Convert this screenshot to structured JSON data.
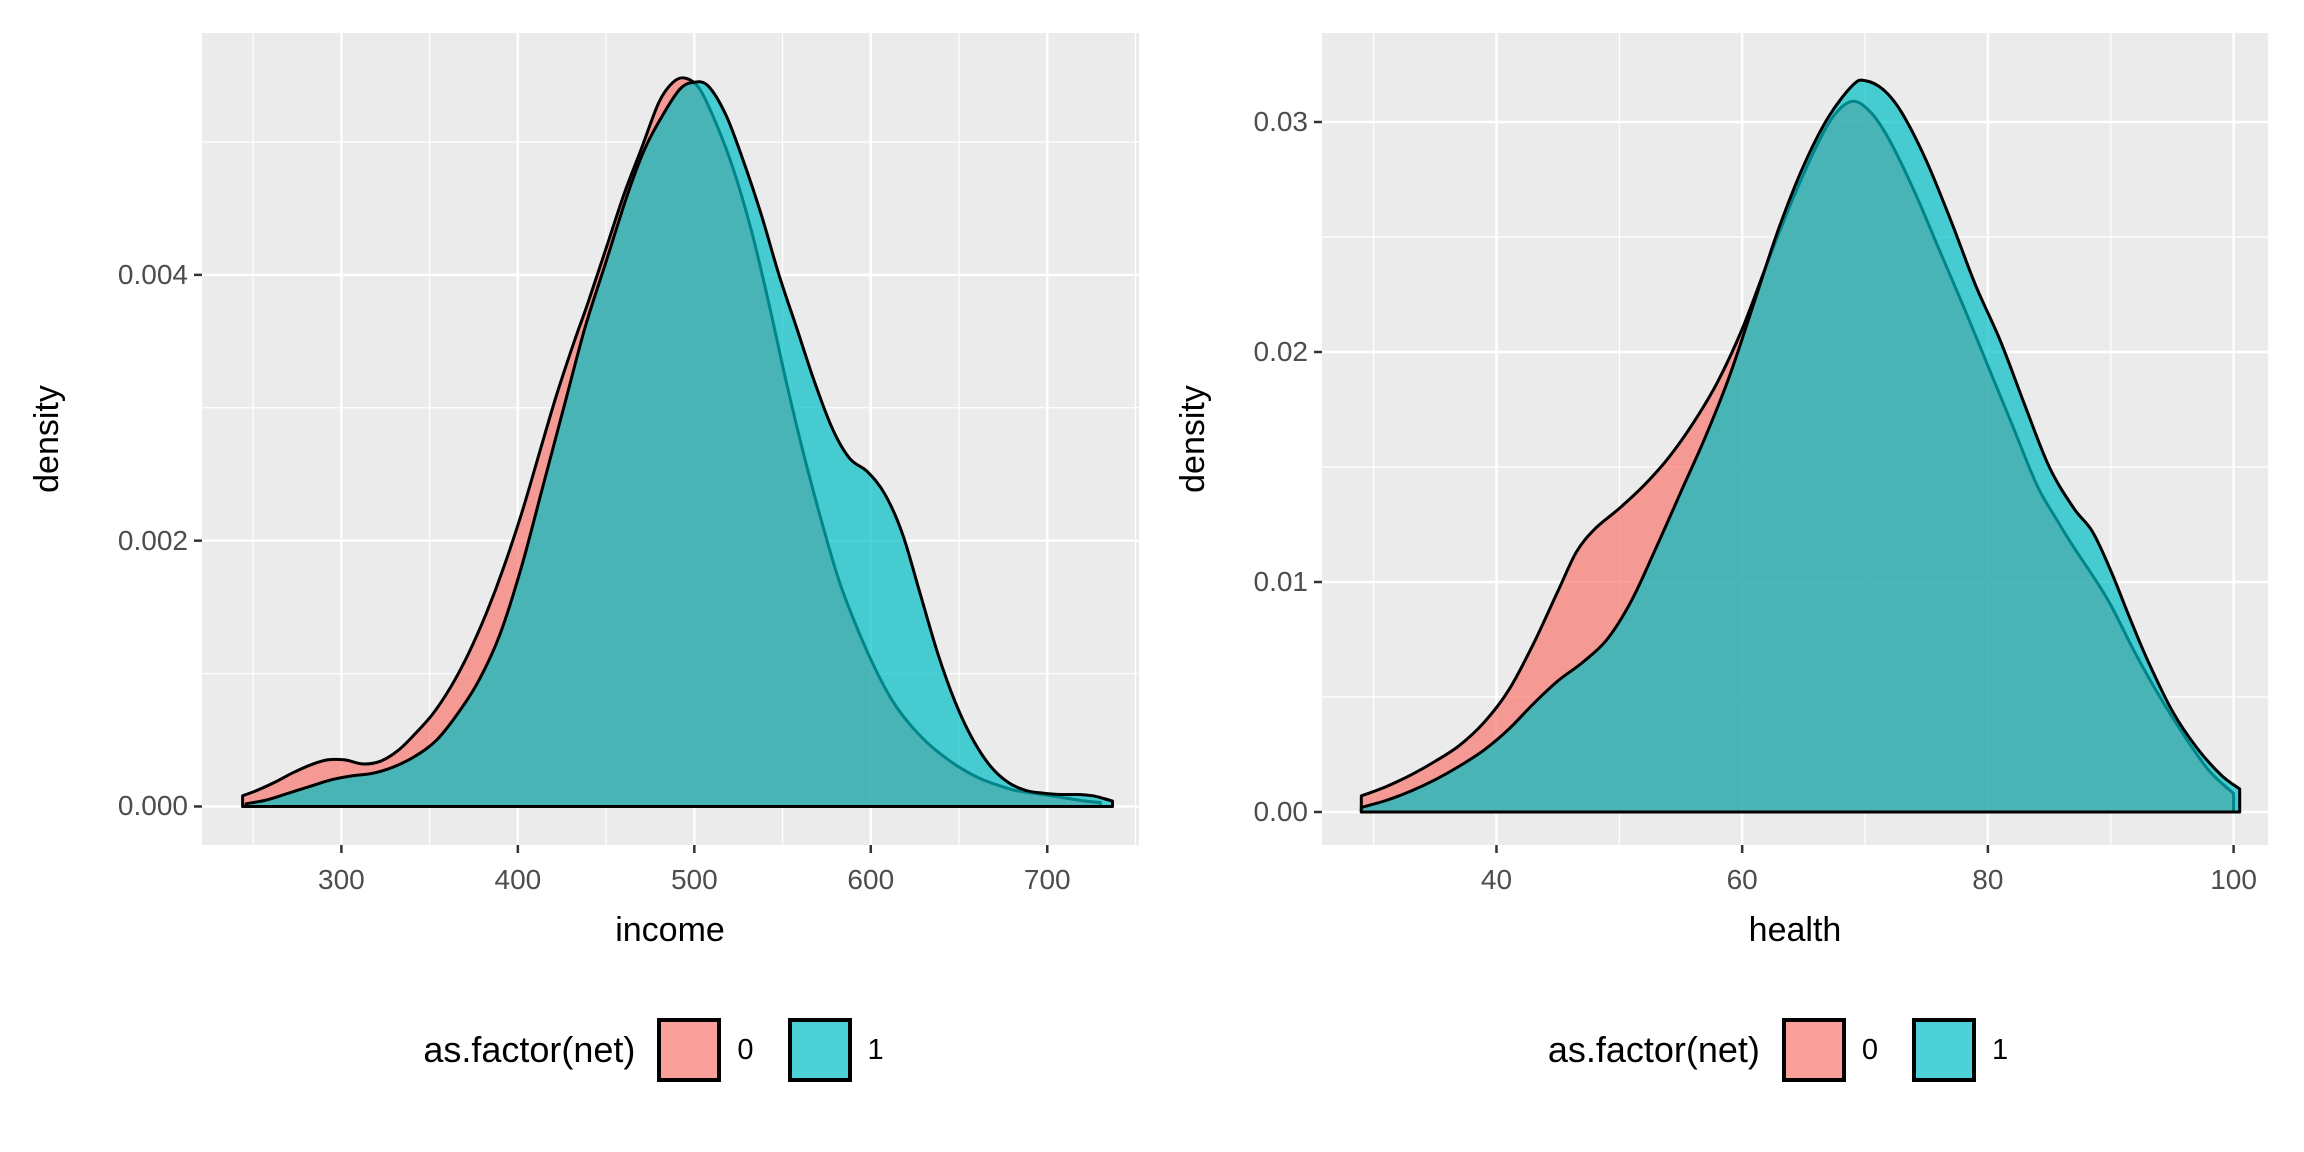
{
  "figure": {
    "background": "#FFFFFF",
    "panel_background": "#EBEBEB",
    "grid_color": "#FFFFFF",
    "axis_text_color": "#4D4D4D",
    "axis_title_color": "#000000",
    "outline_color": "#000000"
  },
  "chart_data": [
    {
      "type": "area",
      "subtype": "density",
      "title": "",
      "xlabel": "income",
      "ylabel": "density",
      "xlim": [
        221,
        752
      ],
      "ylim": [
        -0.00029,
        0.00582
      ],
      "grid": "on",
      "x_ticks": {
        "values": [
          300,
          400,
          500,
          600,
          700
        ],
        "labels": [
          "300",
          "400",
          "500",
          "600",
          "700"
        ]
      },
      "x_minor": [
        250,
        350,
        450,
        550,
        650,
        750
      ],
      "y_ticks": {
        "values": [
          0.0,
          0.002,
          0.004
        ],
        "labels": [
          "0.000",
          "0.002",
          "0.004"
        ]
      },
      "y_minor": [
        0.001,
        0.003,
        0.005
      ],
      "legend": {
        "title": "as.factor(net)",
        "position": "bottom",
        "fill_alpha": 0.7,
        "entries": [
          {
            "label": "0",
            "color": "#F8766D"
          },
          {
            "label": "1",
            "color": "#00BFC4"
          }
        ]
      },
      "series": [
        {
          "name": "0",
          "color": "#F8766D",
          "points": [
            [
              244,
              8e-05
            ],
            [
              252,
              0.00012
            ],
            [
              262,
              0.00018
            ],
            [
              272,
              0.00025
            ],
            [
              282,
              0.00031
            ],
            [
              292,
              0.00035
            ],
            [
              302,
              0.00035
            ],
            [
              312,
              0.00032
            ],
            [
              322,
              0.00034
            ],
            [
              332,
              0.00042
            ],
            [
              342,
              0.00055
            ],
            [
              352,
              0.0007
            ],
            [
              362,
              0.0009
            ],
            [
              372,
              0.00115
            ],
            [
              382,
              0.00145
            ],
            [
              392,
              0.0018
            ],
            [
              402,
              0.0022
            ],
            [
              412,
              0.00265
            ],
            [
              422,
              0.0031
            ],
            [
              432,
              0.0035
            ],
            [
              440,
              0.0038
            ],
            [
              450,
              0.0042
            ],
            [
              460,
              0.0046
            ],
            [
              470,
              0.00495
            ],
            [
              480,
              0.0053
            ],
            [
              488,
              0.00545
            ],
            [
              495,
              0.00548
            ],
            [
              503,
              0.0054
            ],
            [
              512,
              0.00515
            ],
            [
              522,
              0.0048
            ],
            [
              532,
              0.00435
            ],
            [
              542,
              0.0038
            ],
            [
              552,
              0.0032
            ],
            [
              562,
              0.00265
            ],
            [
              572,
              0.00215
            ],
            [
              582,
              0.0017
            ],
            [
              592,
              0.00135
            ],
            [
              602,
              0.00105
            ],
            [
              612,
              0.0008
            ],
            [
              622,
              0.00062
            ],
            [
              632,
              0.00048
            ],
            [
              642,
              0.00037
            ],
            [
              652,
              0.00028
            ],
            [
              662,
              0.00021
            ],
            [
              672,
              0.00016
            ],
            [
              682,
              0.00012
            ],
            [
              692,
              0.0001
            ],
            [
              702,
              8e-05
            ],
            [
              712,
              6e-05
            ],
            [
              722,
              4e-05
            ],
            [
              730,
              3e-05
            ]
          ]
        },
        {
          "name": "1",
          "color": "#00BFC4",
          "points": [
            [
              246,
              2e-05
            ],
            [
              258,
              5e-05
            ],
            [
              270,
              0.0001
            ],
            [
              282,
              0.00015
            ],
            [
              294,
              0.0002
            ],
            [
              306,
              0.00023
            ],
            [
              318,
              0.00025
            ],
            [
              330,
              0.0003
            ],
            [
              342,
              0.00038
            ],
            [
              354,
              0.0005
            ],
            [
              366,
              0.0007
            ],
            [
              378,
              0.00095
            ],
            [
              390,
              0.0013
            ],
            [
              402,
              0.0018
            ],
            [
              414,
              0.0024
            ],
            [
              426,
              0.003
            ],
            [
              438,
              0.0036
            ],
            [
              450,
              0.0041
            ],
            [
              462,
              0.0046
            ],
            [
              472,
              0.00495
            ],
            [
              482,
              0.0052
            ],
            [
              492,
              0.0054
            ],
            [
              500,
              0.00545
            ],
            [
              508,
              0.00542
            ],
            [
              518,
              0.0052
            ],
            [
              528,
              0.00485
            ],
            [
              538,
              0.00445
            ],
            [
              548,
              0.004
            ],
            [
              558,
              0.0036
            ],
            [
              568,
              0.0032
            ],
            [
              578,
              0.00285
            ],
            [
              588,
              0.00262
            ],
            [
              598,
              0.00252
            ],
            [
              608,
              0.00235
            ],
            [
              618,
              0.00205
            ],
            [
              628,
              0.0016
            ],
            [
              638,
              0.00115
            ],
            [
              648,
              0.00078
            ],
            [
              658,
              0.0005
            ],
            [
              668,
              0.0003
            ],
            [
              678,
              0.00018
            ],
            [
              688,
              0.00012
            ],
            [
              698,
              0.0001
            ],
            [
              708,
              9e-05
            ],
            [
              718,
              9e-05
            ],
            [
              726,
              8e-05
            ],
            [
              732,
              6e-05
            ],
            [
              737,
              4e-05
            ]
          ]
        }
      ]
    },
    {
      "type": "area",
      "subtype": "density",
      "title": "",
      "xlabel": "health",
      "ylabel": "density",
      "xlim": [
        25.8,
        102.8
      ],
      "ylim": [
        -0.001435,
        0.03387
      ],
      "grid": "on",
      "x_ticks": {
        "values": [
          40,
          60,
          80,
          100
        ],
        "labels": [
          "40",
          "60",
          "80",
          "100"
        ]
      },
      "x_minor": [
        30,
        50,
        70,
        90
      ],
      "y_ticks": {
        "values": [
          0.0,
          0.01,
          0.02,
          0.03
        ],
        "labels": [
          "0.00",
          "0.01",
          "0.02",
          "0.03"
        ]
      },
      "y_minor": [
        0.005,
        0.015,
        0.025
      ],
      "legend": {
        "title": "as.factor(net)",
        "position": "bottom",
        "fill_alpha": 0.7,
        "entries": [
          {
            "label": "0",
            "color": "#F8766D"
          },
          {
            "label": "1",
            "color": "#00BFC4"
          }
        ]
      },
      "series": [
        {
          "name": "0",
          "color": "#F8766D",
          "points": [
            [
              29,
              0.0007
            ],
            [
              31,
              0.0011
            ],
            [
              33,
              0.0016
            ],
            [
              35,
              0.0022
            ],
            [
              37,
              0.0029
            ],
            [
              39,
              0.0039
            ],
            [
              41,
              0.0053
            ],
            [
              43,
              0.0073
            ],
            [
              45,
              0.0096
            ],
            [
              46.5,
              0.0113
            ],
            [
              48,
              0.0123
            ],
            [
              50,
              0.0132
            ],
            [
              52,
              0.0142
            ],
            [
              54,
              0.0154
            ],
            [
              56,
              0.0169
            ],
            [
              58,
              0.0187
            ],
            [
              60,
              0.021
            ],
            [
              62,
              0.0238
            ],
            [
              64,
              0.0265
            ],
            [
              66,
              0.0289
            ],
            [
              67.5,
              0.0303
            ],
            [
              69,
              0.0309
            ],
            [
              70.5,
              0.0304
            ],
            [
              72,
              0.0292
            ],
            [
              74,
              0.027
            ],
            [
              76,
              0.0245
            ],
            [
              78,
              0.022
            ],
            [
              80,
              0.0194
            ],
            [
              82,
              0.0168
            ],
            [
              84,
              0.0142
            ],
            [
              85.5,
              0.0128
            ],
            [
              87,
              0.0115
            ],
            [
              88.5,
              0.0103
            ],
            [
              90,
              0.009
            ],
            [
              92,
              0.0069
            ],
            [
              94,
              0.005
            ],
            [
              96,
              0.0033
            ],
            [
              98,
              0.0018
            ],
            [
              100,
              0.0008
            ]
          ]
        },
        {
          "name": "1",
          "color": "#00BFC4",
          "points": [
            [
              29,
              0.0002
            ],
            [
              31,
              0.0005
            ],
            [
              33,
              0.0009
            ],
            [
              35,
              0.0014
            ],
            [
              37,
              0.002
            ],
            [
              39,
              0.0027
            ],
            [
              41,
              0.0036
            ],
            [
              43,
              0.0047
            ],
            [
              45,
              0.0057
            ],
            [
              47,
              0.0065
            ],
            [
              49,
              0.0075
            ],
            [
              51,
              0.0092
            ],
            [
              53,
              0.0115
            ],
            [
              55,
              0.0139
            ],
            [
              57,
              0.0163
            ],
            [
              59,
              0.019
            ],
            [
              61,
              0.0222
            ],
            [
              63,
              0.0254
            ],
            [
              65,
              0.0281
            ],
            [
              67,
              0.0302
            ],
            [
              69,
              0.0316
            ],
            [
              70,
              0.0318
            ],
            [
              71.5,
              0.0314
            ],
            [
              73,
              0.0304
            ],
            [
              75,
              0.0283
            ],
            [
              77,
              0.0257
            ],
            [
              79,
              0.0229
            ],
            [
              81,
              0.0205
            ],
            [
              83,
              0.0177
            ],
            [
              85,
              0.015
            ],
            [
              87,
              0.0132
            ],
            [
              88.5,
              0.0122
            ],
            [
              90,
              0.0105
            ],
            [
              91.5,
              0.0085
            ],
            [
              93,
              0.0066
            ],
            [
              95,
              0.0044
            ],
            [
              97,
              0.0028
            ],
            [
              99,
              0.0016
            ],
            [
              100.5,
              0.001
            ]
          ]
        }
      ]
    }
  ]
}
